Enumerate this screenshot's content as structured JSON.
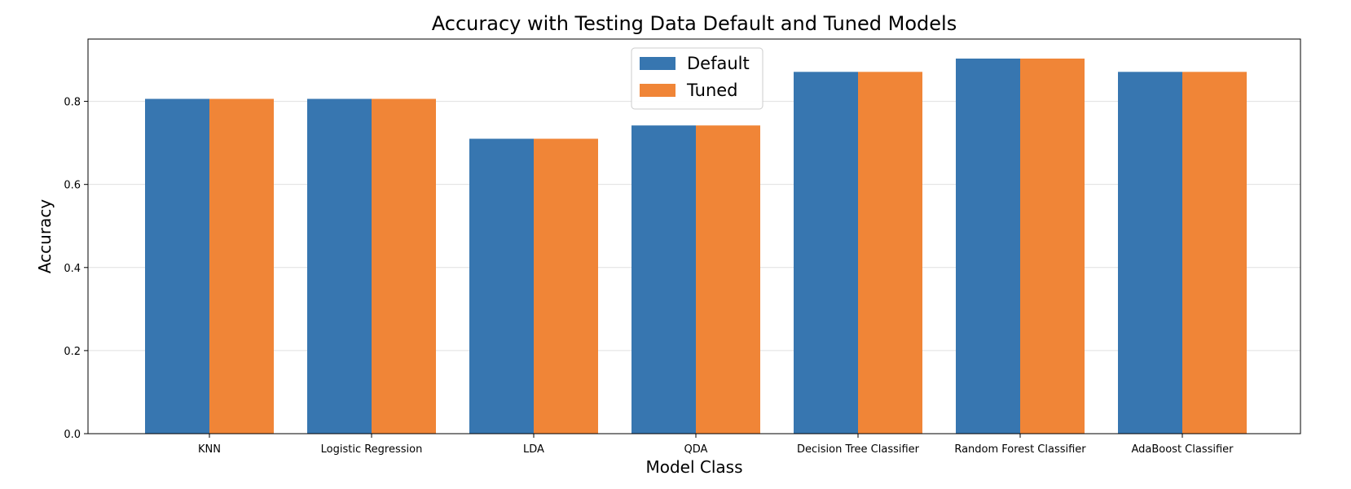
{
  "chart_data": {
    "type": "bar",
    "title": "Accuracy with Testing Data Default and Tuned Models",
    "xlabel": "Model Class",
    "ylabel": "Accuracy",
    "categories": [
      "KNN",
      "Logistic Regression",
      "LDA",
      "QDA",
      "Decision Tree Classifier",
      "Random Forest Classifier",
      "AdaBoost Classifier"
    ],
    "series": [
      {
        "name": "Default",
        "color": "#3776b0",
        "values": [
          0.806,
          0.806,
          0.71,
          0.742,
          0.871,
          0.903,
          0.871
        ]
      },
      {
        "name": "Tuned",
        "color": "#f08537",
        "values": [
          0.806,
          0.806,
          0.71,
          0.742,
          0.871,
          0.903,
          0.871
        ]
      }
    ],
    "ylim": [
      0,
      0.95
    ],
    "yticks": [
      0.0,
      0.2,
      0.4,
      0.6,
      0.8
    ],
    "ytick_labels": [
      "0.0",
      "0.2",
      "0.4",
      "0.6",
      "0.8"
    ],
    "grid": "horizontal",
    "legend_position": "top-center"
  }
}
